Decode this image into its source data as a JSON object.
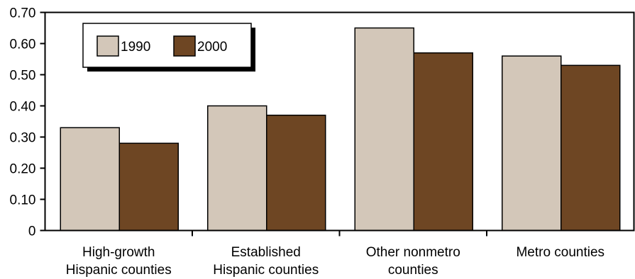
{
  "chart_data": {
    "type": "bar",
    "categories": [
      [
        "High-growth",
        "Hispanic counties"
      ],
      [
        "Established",
        "Hispanic counties"
      ],
      [
        "Other nonmetro",
        "counties"
      ],
      [
        "Metro counties"
      ]
    ],
    "series": [
      {
        "name": "1990",
        "values": [
          0.33,
          0.4,
          0.65,
          0.56
        ],
        "color": "#d3c7b9"
      },
      {
        "name": "2000",
        "values": [
          0.28,
          0.37,
          0.57,
          0.53
        ],
        "color": "#6e4623"
      }
    ],
    "yticks": [
      "0",
      "0.10",
      "0.20",
      "0.30",
      "0.40",
      "0.50",
      "0.60",
      "0.70"
    ],
    "ylim": [
      0,
      0.7
    ],
    "grid": false,
    "legend_position": "top-left"
  }
}
